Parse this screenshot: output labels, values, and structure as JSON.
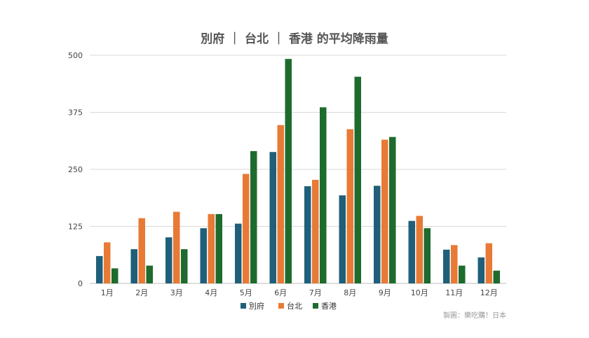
{
  "chart_data": {
    "type": "bar",
    "title": "別府 ｜ 台北 ｜ 香港 的平均降雨量",
    "xlabel": "",
    "ylabel": "",
    "ylim": [
      0,
      500
    ],
    "yticks": [
      0,
      125,
      250,
      375,
      500
    ],
    "grid": true,
    "legend_position": "bottom",
    "categories": [
      "1月",
      "2月",
      "3月",
      "4月",
      "5月",
      "6月",
      "7月",
      "8月",
      "9月",
      "10月",
      "11月",
      "12月"
    ],
    "series": [
      {
        "name": "別府",
        "color": "#1f5f7a",
        "values": [
          60,
          75,
          101,
          121,
          131,
          288,
          213,
          193,
          214,
          137,
          74,
          57
        ]
      },
      {
        "name": "台北",
        "color": "#e87a35",
        "values": [
          90,
          143,
          157,
          152,
          240,
          347,
          227,
          338,
          315,
          148,
          84,
          88
        ]
      },
      {
        "name": "香港",
        "color": "#1e6b2e",
        "values": [
          33,
          39,
          75,
          152,
          290,
          492,
          386,
          453,
          321,
          121,
          39,
          28
        ]
      }
    ]
  },
  "credit": "製圖：樂吃購！日本"
}
